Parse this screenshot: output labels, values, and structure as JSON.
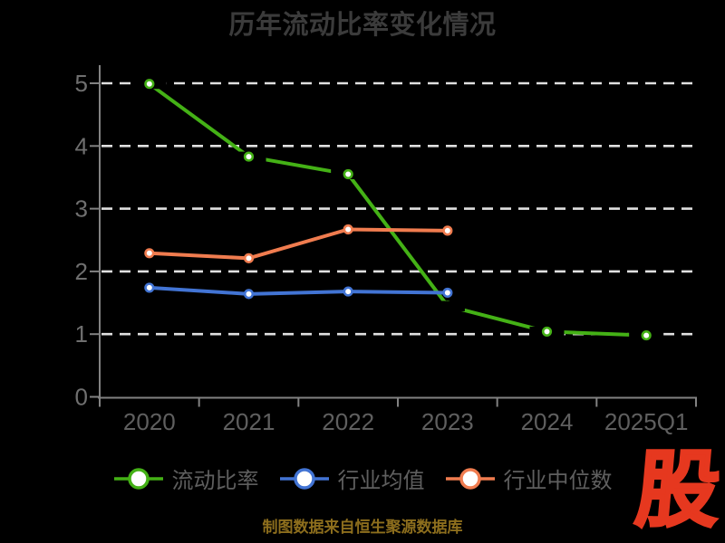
{
  "page": {
    "background": "#000000",
    "title": "历年流动比率变化情况"
  },
  "chart_data": {
    "type": "line",
    "title": "历年流动比率变化情况",
    "categories": [
      "2020",
      "2021",
      "2022",
      "2023",
      "2024",
      "2025Q1"
    ],
    "series": [
      {
        "name": "流动比率",
        "color": "#44b116",
        "marker": "circle-white-fill",
        "values": [
          4.99,
          3.83,
          3.55,
          1.45,
          1.04,
          0.98
        ]
      },
      {
        "name": "行业均值",
        "color": "#4274d4",
        "marker": "circle-white-fill",
        "values": [
          1.74,
          1.64,
          1.68,
          1.66,
          null,
          null
        ]
      },
      {
        "name": "行业中位数",
        "color": "#f07c4f",
        "marker": "circle-white-fill",
        "values": [
          2.29,
          2.21,
          2.67,
          2.65,
          null,
          null
        ]
      }
    ],
    "xlabel": "",
    "ylabel": "",
    "ylim": [
      0,
      5
    ],
    "yticks": [
      0,
      1,
      2,
      3,
      4,
      5
    ],
    "grid": "horizontal-dashed-white",
    "legend_position": "bottom",
    "point_labels_hidden_black": true
  },
  "footer": {
    "source_text": "制图数据来自恒生聚源数据库",
    "color": "#8d6e1d"
  },
  "logo": {
    "text": "股",
    "color": "#e6381f"
  },
  "colors": {
    "background": "#000000",
    "title": "#3b3b3b",
    "axis": "#828282",
    "y_tick_labels": "#6f6f6f",
    "x_tick_labels": "#5f5f5f",
    "gridline": "#e0e0e0",
    "legend_text": "#5f5f5f"
  }
}
